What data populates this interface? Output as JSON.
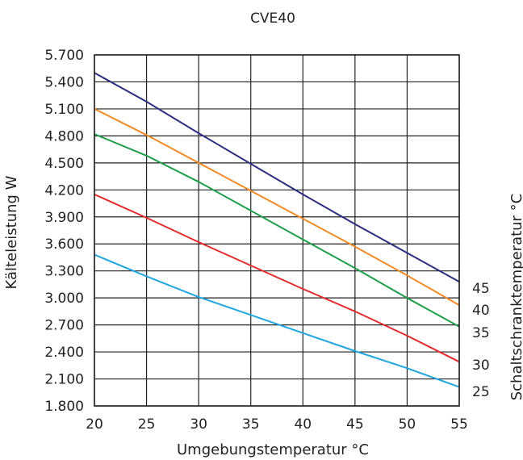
{
  "chart_data": {
    "type": "line",
    "title": "CVE40",
    "xlabel": "Umgebungstemperatur °C",
    "ylabel": "Kälteleistung W",
    "y2label": "Schaltschranktemperatur °C",
    "xlim": [
      20,
      55
    ],
    "ylim": [
      1800,
      5700
    ],
    "x_ticks": [
      "20",
      "25",
      "30",
      "35",
      "40",
      "45",
      "50",
      "55"
    ],
    "y_ticks": [
      "1.800",
      "2.100",
      "2.400",
      "2.700",
      "3.000",
      "3.300",
      "3.600",
      "3.900",
      "4.200",
      "4.500",
      "4.800",
      "5.100",
      "5.400",
      "5.700"
    ],
    "grid": true,
    "series": [
      {
        "name": "45",
        "color": "#2b2d7f",
        "points": [
          [
            20,
            5500
          ],
          [
            25,
            5180
          ],
          [
            30,
            4830
          ],
          [
            35,
            4490
          ],
          [
            40,
            4150
          ],
          [
            45,
            3820
          ],
          [
            50,
            3500
          ],
          [
            55,
            3180
          ]
        ]
      },
      {
        "name": "40",
        "color": "#f08a24",
        "points": [
          [
            20,
            5100
          ],
          [
            25,
            4810
          ],
          [
            30,
            4500
          ],
          [
            35,
            4190
          ],
          [
            40,
            3880
          ],
          [
            45,
            3570
          ],
          [
            50,
            3250
          ],
          [
            55,
            2920
          ]
        ]
      },
      {
        "name": "35",
        "color": "#1f9e4a",
        "points": [
          [
            20,
            4820
          ],
          [
            25,
            4580
          ],
          [
            30,
            4290
          ],
          [
            35,
            3970
          ],
          [
            40,
            3650
          ],
          [
            45,
            3330
          ],
          [
            50,
            3000
          ],
          [
            55,
            2680
          ]
        ]
      },
      {
        "name": "30",
        "color": "#e32b2b",
        "points": [
          [
            20,
            4150
          ],
          [
            25,
            3890
          ],
          [
            30,
            3620
          ],
          [
            35,
            3360
          ],
          [
            40,
            3100
          ],
          [
            45,
            2850
          ],
          [
            50,
            2580
          ],
          [
            55,
            2290
          ]
        ]
      },
      {
        "name": "25",
        "color": "#1fa6e0",
        "points": [
          [
            20,
            3480
          ],
          [
            25,
            3240
          ],
          [
            30,
            3010
          ],
          [
            35,
            2810
          ],
          [
            40,
            2610
          ],
          [
            45,
            2410
          ],
          [
            50,
            2220
          ],
          [
            55,
            2010
          ]
        ]
      }
    ]
  }
}
